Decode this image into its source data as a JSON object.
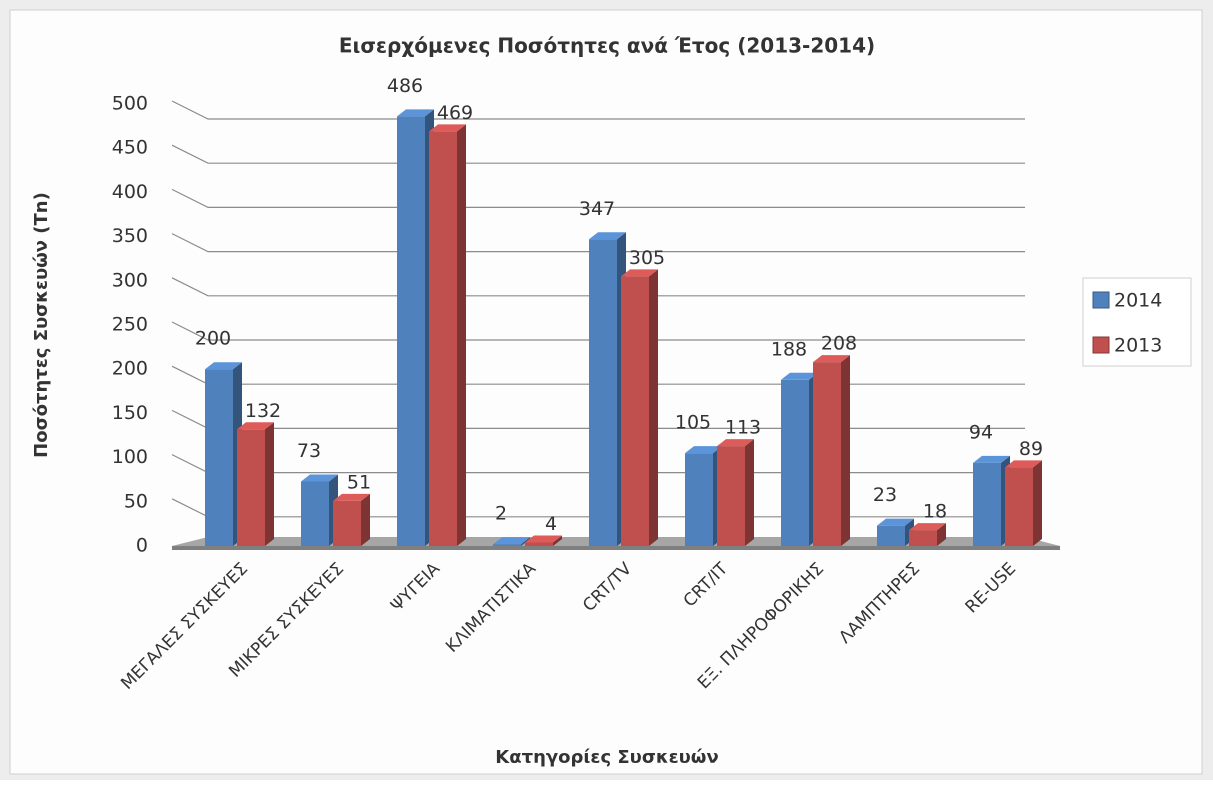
{
  "chart_data": {
    "type": "bar",
    "title": "Εισερχόμενες Ποσότητες ανά Έτος (2013-2014)",
    "x_label": "Κατηγορίες Συσκευών",
    "y_label": "Ποσότητες Συσκευών (Τn)",
    "categories": [
      "ΜΕΓΑΛΕΣ ΣΥΣΚΕΥΕΣ",
      "ΜΙΚΡΕΣ ΣΥΣΚΕΥΕΣ",
      "ΨΥΓΕΙΑ",
      "ΚΛΙΜΑΤΙΣΤΙΚΑ",
      "CRT/TV",
      "CRT/IT",
      "ΕΞ. ΠΛΗΡΟΦΟΡΙΚΗΣ",
      "ΛΑΜΠΤΗΡΕΣ",
      "RE-USE"
    ],
    "series": [
      {
        "name": "2014",
        "color": "#4f81bd",
        "values": [
          200,
          73,
          486,
          2,
          347,
          105,
          188,
          23,
          94
        ]
      },
      {
        "name": "2013",
        "color": "#c0504d",
        "values": [
          132,
          51,
          469,
          4,
          305,
          113,
          208,
          18,
          89
        ]
      }
    ],
    "ylim": [
      0,
      500
    ],
    "yticks": [
      0,
      50,
      100,
      150,
      200,
      250,
      300,
      350,
      400,
      450,
      500
    ],
    "grid": true,
    "legend": "right"
  }
}
